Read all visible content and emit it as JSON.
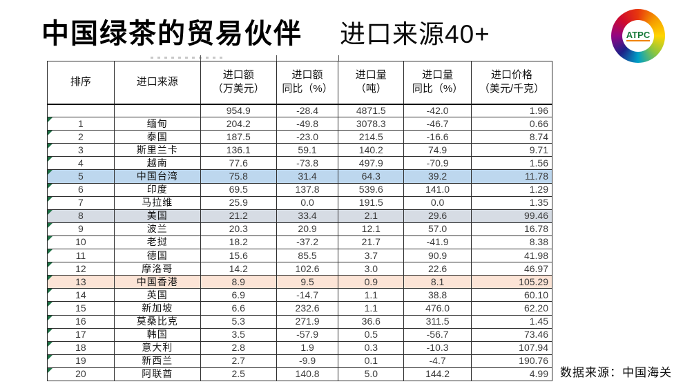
{
  "header": {
    "title": "中国绿茶的贸易伙伴",
    "subtitle": "进口来源40+",
    "logo": {
      "text": "ATPC",
      "text_color": "#187a3a",
      "ring_colors": [
        "#e8380d",
        "#f59b00",
        "#ffd500",
        "#8cc63f",
        "#00a0c6",
        "#1d2088",
        "#920783"
      ]
    }
  },
  "table": {
    "columns": [
      {
        "label": "排序"
      },
      {
        "label": "进口来源"
      },
      {
        "label": "进口额\n（万美元）"
      },
      {
        "label": "进口额\n同比（%）"
      },
      {
        "label": "进口量\n（吨）"
      },
      {
        "label": "进口量\n同比（%）"
      },
      {
        "label": "进口价格\n（美元/千克）"
      }
    ],
    "highlight_colors": {
      "blue": "#bdd7ee",
      "gray": "#d6dce4",
      "peach": "#fce4d6"
    },
    "error_marker_color": "#1e7145",
    "rows": [
      {
        "rank": "",
        "source": "",
        "values": [
          "954.9",
          "-28.4",
          "4871.5",
          "-42.0",
          "1.96"
        ],
        "highlight": "",
        "error_marker": false
      },
      {
        "rank": "1",
        "source": "缅甸",
        "values": [
          "204.2",
          "-49.8",
          "3078.3",
          "-46.7",
          "0.66"
        ],
        "highlight": "",
        "error_marker": true
      },
      {
        "rank": "2",
        "source": "泰国",
        "values": [
          "187.5",
          "-23.0",
          "214.5",
          "-16.6",
          "8.74"
        ],
        "highlight": "",
        "error_marker": true
      },
      {
        "rank": "3",
        "source": "斯里兰卡",
        "values": [
          "136.1",
          "59.1",
          "140.2",
          "74.9",
          "9.71"
        ],
        "highlight": "",
        "error_marker": true
      },
      {
        "rank": "4",
        "source": "越南",
        "values": [
          "77.6",
          "-73.8",
          "497.9",
          "-70.9",
          "1.56"
        ],
        "highlight": "",
        "error_marker": true
      },
      {
        "rank": "5",
        "source": "中国台湾",
        "values": [
          "75.8",
          "31.4",
          "64.3",
          "39.2",
          "11.78"
        ],
        "highlight": "blue",
        "error_marker": true
      },
      {
        "rank": "6",
        "source": "印度",
        "values": [
          "69.5",
          "137.8",
          "539.6",
          "141.0",
          "1.29"
        ],
        "highlight": "",
        "error_marker": true
      },
      {
        "rank": "7",
        "source": "马拉维",
        "values": [
          "25.9",
          "0.0",
          "191.5",
          "0.0",
          "1.35"
        ],
        "highlight": "",
        "error_marker": true
      },
      {
        "rank": "8",
        "source": "美国",
        "values": [
          "21.2",
          "33.4",
          "2.1",
          "29.6",
          "99.46"
        ],
        "highlight": "gray",
        "error_marker": true
      },
      {
        "rank": "9",
        "source": "波兰",
        "values": [
          "20.3",
          "20.9",
          "12.1",
          "57.0",
          "16.78"
        ],
        "highlight": "",
        "error_marker": true
      },
      {
        "rank": "10",
        "source": "老挝",
        "values": [
          "18.2",
          "-37.2",
          "21.7",
          "-41.9",
          "8.38"
        ],
        "highlight": "",
        "error_marker": true
      },
      {
        "rank": "11",
        "source": "德国",
        "values": [
          "15.6",
          "85.5",
          "3.7",
          "90.9",
          "41.98"
        ],
        "highlight": "",
        "error_marker": true
      },
      {
        "rank": "12",
        "source": "摩洛哥",
        "values": [
          "14.2",
          "102.6",
          "3.0",
          "22.6",
          "46.97"
        ],
        "highlight": "",
        "error_marker": true
      },
      {
        "rank": "13",
        "source": "中国香港",
        "values": [
          "8.9",
          "9.5",
          "0.9",
          "8.1",
          "105.29"
        ],
        "highlight": "peach",
        "error_marker": true
      },
      {
        "rank": "14",
        "source": "英国",
        "values": [
          "6.9",
          "-14.7",
          "1.1",
          "38.8",
          "60.10"
        ],
        "highlight": "",
        "error_marker": true
      },
      {
        "rank": "15",
        "source": "新加坡",
        "values": [
          "6.6",
          "232.6",
          "1.1",
          "476.0",
          "62.20"
        ],
        "highlight": "",
        "error_marker": true
      },
      {
        "rank": "16",
        "source": "莫桑比克",
        "values": [
          "5.3",
          "271.9",
          "36.6",
          "311.5",
          "1.45"
        ],
        "highlight": "",
        "error_marker": true
      },
      {
        "rank": "17",
        "source": "韩国",
        "values": [
          "3.5",
          "-57.9",
          "0.5",
          "-56.7",
          "73.46"
        ],
        "highlight": "",
        "error_marker": true
      },
      {
        "rank": "18",
        "source": "意大利",
        "values": [
          "2.8",
          "1.9",
          "0.3",
          "-10.3",
          "107.94"
        ],
        "highlight": "",
        "error_marker": true
      },
      {
        "rank": "19",
        "source": "新西兰",
        "values": [
          "2.7",
          "-9.9",
          "0.1",
          "-4.7",
          "190.76"
        ],
        "highlight": "",
        "error_marker": true
      },
      {
        "rank": "20",
        "source": "阿联酋",
        "values": [
          "2.5",
          "140.8",
          "5.0",
          "144.2",
          "4.99"
        ],
        "highlight": "",
        "error_marker": true
      }
    ]
  },
  "footer": {
    "source": "数据来源：中国海关"
  }
}
